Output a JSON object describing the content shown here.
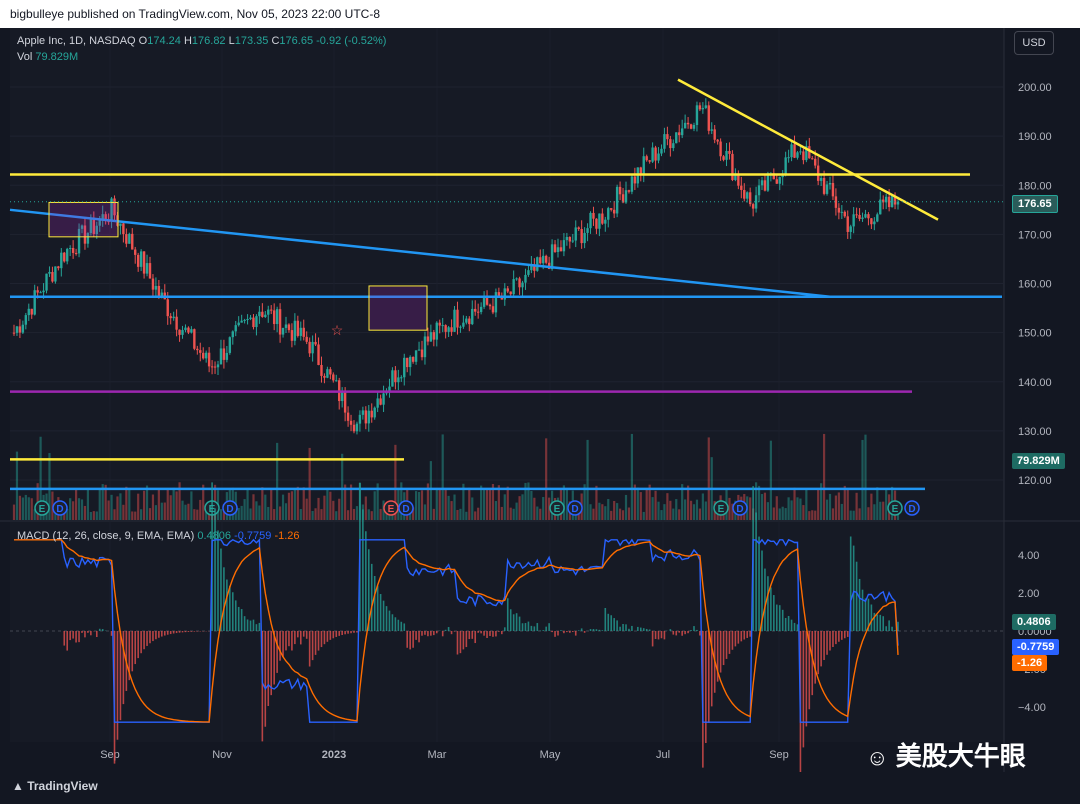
{
  "header": {
    "text": "bigbulleye published on TradingView.com, Nov 05, 2023 22:00 UTC-8"
  },
  "legend": {
    "symbol": "Apple Inc, 1D, NASDAQ",
    "o_label": "O",
    "o": "174.24",
    "h_label": "H",
    "h": "176.82",
    "l_label": "L",
    "l": "173.35",
    "c_label": "C",
    "c": "176.65",
    "change": "-0.92 (-0.52%)",
    "vol_label": "Vol",
    "vol": "79.829M"
  },
  "macd_legend": {
    "label": "MACD (12, 26, close, 9, EMA, EMA)",
    "hist": "0.4806",
    "macd": "-0.7759",
    "signal": "-1.26"
  },
  "currency": "USD",
  "branding": {
    "tradingview": "TradingView",
    "watermark": "美股大牛眼"
  },
  "colors": {
    "up": "#26a69a",
    "down": "#ef5350",
    "yellow": "#ffeb3b",
    "blue": "#2196f3",
    "purple": "#9c27b0",
    "macd": "#2962ff",
    "signal": "#ff6d00"
  },
  "chart_data": [
    {
      "type": "candlestick",
      "title": "Apple Inc, 1D, NASDAQ",
      "ylim": [
        110,
        207
      ],
      "y_ticks": [
        120,
        130,
        140,
        150,
        160,
        170,
        180,
        190,
        200
      ],
      "y_tick_labels": [
        "120.00",
        "130.00",
        "140.00",
        "150.00",
        "160.00",
        "170.00",
        "180.00",
        "190.00",
        "200.00"
      ],
      "x_tick_labels": [
        "Sep",
        "Nov",
        "2023",
        "Mar",
        "May",
        "Jul",
        "Sep"
      ],
      "last_price": 176.65,
      "last_price_label": "176.65",
      "volume_label": "79.829M",
      "price_path": [
        {
          "month": "2022-07",
          "close": 150
        },
        {
          "month": "2022-08a",
          "close": 166
        },
        {
          "month": "2022-08b",
          "close": 175
        },
        {
          "month": "2022-09",
          "close": 157
        },
        {
          "month": "2022-10a",
          "close": 143
        },
        {
          "month": "2022-10b",
          "close": 155
        },
        {
          "month": "2022-11",
          "close": 148
        },
        {
          "month": "2022-12",
          "close": 131
        },
        {
          "month": "2023-01",
          "close": 145
        },
        {
          "month": "2023-02",
          "close": 153
        },
        {
          "month": "2023-03",
          "close": 157
        },
        {
          "month": "2023-04",
          "close": 166
        },
        {
          "month": "2023-05",
          "close": 174
        },
        {
          "month": "2023-06",
          "close": 186
        },
        {
          "month": "2023-07",
          "close": 196
        },
        {
          "month": "2023-08",
          "close": 176
        },
        {
          "month": "2023-09",
          "close": 188
        },
        {
          "month": "2023-10",
          "close": 172
        },
        {
          "month": "2023-11",
          "close": 176.65
        }
      ],
      "horizontal_levels": [
        {
          "price": 182.2,
          "color": "yellow"
        },
        {
          "price": 157.3,
          "color": "blue"
        },
        {
          "price": 138.0,
          "color": "purple"
        },
        {
          "price": 124.2,
          "color": "yellow"
        },
        {
          "price": 118.2,
          "color": "blue"
        }
      ],
      "trendlines": [
        {
          "color": "yellow",
          "from_price": 201.5,
          "to_price": 173.0
        },
        {
          "color": "blue",
          "from_price": 175.0,
          "to_price": 157.3
        }
      ],
      "annotations": [
        "E",
        "D"
      ]
    },
    {
      "type": "line",
      "title": "MACD (12, 26, close, 9, EMA, EMA)",
      "ylim": [
        -5.2,
        5.2
      ],
      "y_ticks": [
        -4,
        -2,
        0,
        2,
        4
      ],
      "y_tick_labels": [
        "−4.00",
        "−2.00",
        "0.0000",
        "2.00",
        "4.00"
      ],
      "series": [
        {
          "name": "MACD",
          "last": -0.7759
        },
        {
          "name": "Signal",
          "last": -1.26
        },
        {
          "name": "Histogram",
          "last": 0.4806
        }
      ]
    }
  ]
}
